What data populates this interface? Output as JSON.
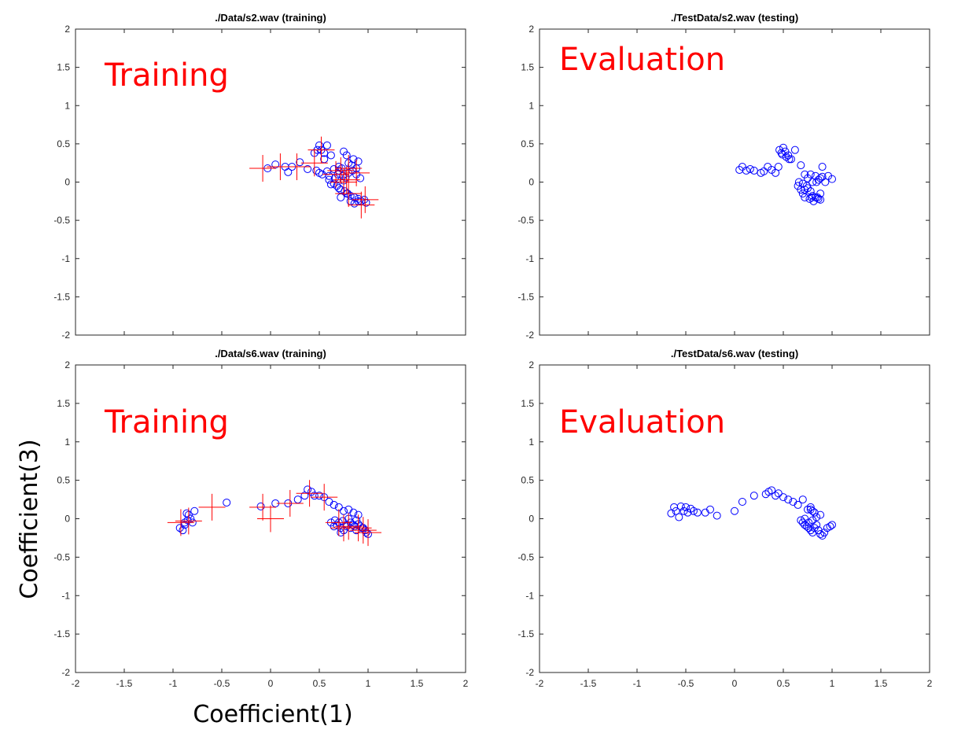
{
  "figure": {
    "xlabel": "Coefficient(1)",
    "ylabel": "Coefficient(3)",
    "colors": {
      "marker_circle": "#0000ff",
      "marker_cross": "#ff0000",
      "overlay_text": "#ff0000",
      "axis": "#262626"
    }
  },
  "chart_data": [
    {
      "type": "scatter",
      "title": "./Data/s2.wav (training)",
      "overlay": "Training",
      "xlim": [
        -2,
        2
      ],
      "ylim": [
        -2,
        2
      ],
      "xticks": [
        "-2",
        "-1.5",
        "-1",
        "-0.5",
        "0",
        "0.5",
        "1",
        "1.5",
        "2"
      ],
      "yticks": [
        "-2",
        "-1.5",
        "-1",
        "-0.5",
        "0",
        "0.5",
        "1",
        "1.5",
        "2"
      ],
      "show_xticklabels": false,
      "series": [
        {
          "marker": "circle",
          "x": [
            -0.03,
            0.05,
            0.15,
            0.18,
            0.22,
            0.3,
            0.38,
            0.45,
            0.48,
            0.5,
            0.52,
            0.55,
            0.47,
            0.5,
            0.53,
            0.58,
            0.62,
            0.65,
            0.7,
            0.73,
            0.75,
            0.78,
            0.8,
            0.83,
            0.85,
            0.88,
            0.9,
            0.6,
            0.65,
            0.68,
            0.7,
            0.72,
            0.76,
            0.79,
            0.82,
            0.86,
            0.9,
            0.93,
            0.96,
            0.98,
            0.66,
            0.69,
            0.74,
            0.77,
            0.8,
            0.84,
            0.88,
            0.92,
            0.62,
            0.6,
            0.7,
            0.75,
            0.72,
            0.78,
            0.82,
            0.86,
            0.9,
            0.55,
            0.58
          ],
          "y": [
            0.18,
            0.23,
            0.2,
            0.13,
            0.2,
            0.26,
            0.17,
            0.38,
            0.42,
            0.48,
            0.42,
            0.38,
            0.15,
            0.12,
            0.1,
            0.48,
            0.35,
            0.17,
            0.15,
            0.18,
            0.4,
            0.35,
            0.25,
            0.22,
            0.3,
            0.18,
            0.27,
            0.03,
            -0.02,
            -0.05,
            -0.08,
            -0.1,
            -0.12,
            -0.15,
            -0.18,
            -0.2,
            -0.22,
            -0.25,
            -0.23,
            -0.27,
            0.05,
            0.1,
            0.08,
            0.06,
            0.12,
            0.15,
            0.1,
            0.05,
            -0.03,
            0.08,
            0.2,
            0.02,
            -0.2,
            -0.15,
            -0.25,
            -0.28,
            -0.25,
            0.3,
            0.14
          ]
        },
        {
          "marker": "cross",
          "x": [
            -0.08,
            0.1,
            0.27,
            0.45,
            0.52,
            0.67,
            0.72,
            0.8,
            0.88,
            0.75,
            0.78,
            0.8,
            0.93,
            0.97
          ],
          "y": [
            0.18,
            0.2,
            0.2,
            0.25,
            0.42,
            0.1,
            0.15,
            0.18,
            0.12,
            0.0,
            0.03,
            -0.15,
            -0.3,
            -0.23
          ]
        }
      ]
    },
    {
      "type": "scatter",
      "title": "./TestData/s2.wav (testing)",
      "overlay": "Evaluation",
      "xlim": [
        -2,
        2
      ],
      "ylim": [
        -2,
        2
      ],
      "xticks": [
        "-2",
        "-1.5",
        "-1",
        "-0.5",
        "0",
        "0.5",
        "1",
        "1.5",
        "2"
      ],
      "yticks": [
        "-2",
        "-1.5",
        "-1",
        "-0.5",
        "0",
        "0.5",
        "1",
        "1.5",
        "2"
      ],
      "show_xticklabels": false,
      "series": [
        {
          "marker": "circle",
          "x": [
            0.05,
            0.08,
            0.12,
            0.16,
            0.2,
            0.27,
            0.3,
            0.34,
            0.38,
            0.42,
            0.45,
            0.48,
            0.5,
            0.52,
            0.55,
            0.58,
            0.62,
            0.46,
            0.49,
            0.53,
            0.56,
            0.68,
            0.72,
            0.75,
            0.78,
            0.8,
            0.83,
            0.86,
            0.88,
            0.9,
            0.93,
            0.96,
            1.0,
            0.65,
            0.68,
            0.7,
            0.72,
            0.75,
            0.78,
            0.8,
            0.83,
            0.86,
            0.88,
            0.7,
            0.74,
            0.77,
            0.81,
            0.85,
            0.88,
            0.66,
            0.72,
            0.79,
            0.84,
            0.9
          ],
          "y": [
            0.16,
            0.2,
            0.15,
            0.17,
            0.15,
            0.12,
            0.14,
            0.2,
            0.16,
            0.12,
            0.2,
            0.38,
            0.45,
            0.4,
            0.35,
            0.3,
            0.42,
            0.42,
            0.36,
            0.33,
            0.3,
            0.22,
            0.1,
            0.05,
            0.1,
            0.0,
            0.08,
            0.03,
            0.05,
            0.07,
            0.0,
            0.08,
            0.04,
            -0.05,
            -0.1,
            -0.15,
            -0.2,
            -0.08,
            -0.12,
            -0.18,
            -0.2,
            -0.22,
            -0.15,
            -0.02,
            -0.05,
            -0.22,
            -0.25,
            -0.2,
            -0.23,
            0.0,
            -0.1,
            -0.2,
            0.0,
            0.2
          ]
        }
      ]
    },
    {
      "type": "scatter",
      "title": "./Data/s6.wav (training)",
      "overlay": "Training",
      "xlim": [
        -2,
        2
      ],
      "ylim": [
        -2,
        2
      ],
      "xticks": [
        "-2",
        "-1.5",
        "-1",
        "-0.5",
        "0",
        "0.5",
        "1",
        "1.5",
        "2"
      ],
      "yticks": [
        "-2",
        "-1.5",
        "-1",
        "-0.5",
        "0",
        "0.5",
        "1",
        "1.5",
        "2"
      ],
      "show_xticklabels": true,
      "series": [
        {
          "marker": "circle",
          "x": [
            -0.93,
            -0.9,
            -0.88,
            -0.85,
            -0.82,
            -0.8,
            -0.86,
            -0.84,
            -0.88,
            -0.78,
            -0.45,
            -0.1,
            0.05,
            0.18,
            0.28,
            0.35,
            0.38,
            0.42,
            0.45,
            0.5,
            0.55,
            0.6,
            0.65,
            0.7,
            0.75,
            0.8,
            0.85,
            0.9,
            0.62,
            0.65,
            0.68,
            0.72,
            0.75,
            0.78,
            0.82,
            0.85,
            0.88,
            0.92,
            0.95,
            0.98,
            1.0,
            0.66,
            0.7,
            0.74,
            0.78,
            0.82,
            0.86,
            0.9,
            0.94,
            0.97,
            0.72,
            0.8,
            0.88
          ],
          "y": [
            -0.12,
            -0.15,
            -0.05,
            -0.02,
            0.0,
            -0.05,
            0.07,
            0.05,
            -0.08,
            0.1,
            0.21,
            0.16,
            0.2,
            0.2,
            0.25,
            0.3,
            0.38,
            0.35,
            0.3,
            0.3,
            0.28,
            0.22,
            0.18,
            0.15,
            0.1,
            0.12,
            0.08,
            0.05,
            -0.05,
            -0.1,
            -0.08,
            -0.12,
            -0.15,
            -0.1,
            -0.12,
            -0.08,
            -0.15,
            -0.1,
            -0.12,
            -0.18,
            -0.2,
            -0.02,
            -0.05,
            -0.03,
            -0.08,
            -0.05,
            -0.1,
            -0.07,
            -0.12,
            -0.15,
            -0.18,
            0.0,
            -0.02
          ]
        },
        {
          "marker": "cross",
          "x": [
            -0.92,
            -0.84,
            -0.6,
            -0.08,
            0.0,
            0.2,
            0.4,
            0.55,
            0.7,
            0.75,
            0.8,
            0.9,
            0.95,
            1.0
          ],
          "y": [
            -0.05,
            -0.03,
            0.15,
            0.15,
            0.0,
            0.2,
            0.33,
            0.28,
            -0.05,
            -0.12,
            -0.1,
            -0.12,
            -0.15,
            -0.18
          ]
        }
      ]
    },
    {
      "type": "scatter",
      "title": "./TestData/s6.wav (testing)",
      "overlay": "Evaluation",
      "xlim": [
        -2,
        2
      ],
      "ylim": [
        -2,
        2
      ],
      "xticks": [
        "-2",
        "-1.5",
        "-1",
        "-0.5",
        "0",
        "0.5",
        "1",
        "1.5",
        "2"
      ],
      "yticks": [
        "-2",
        "-1.5",
        "-1",
        "-0.5",
        "0",
        "0.5",
        "1",
        "1.5",
        "2"
      ],
      "show_xticklabels": true,
      "series": [
        {
          "marker": "circle",
          "x": [
            -0.65,
            -0.62,
            -0.6,
            -0.57,
            -0.55,
            -0.52,
            -0.5,
            -0.48,
            -0.45,
            -0.42,
            -0.38,
            -0.3,
            -0.25,
            -0.18,
            0.0,
            0.08,
            0.2,
            0.32,
            0.35,
            0.38,
            0.42,
            0.45,
            0.5,
            0.55,
            0.6,
            0.65,
            0.7,
            0.75,
            0.78,
            0.8,
            0.68,
            0.7,
            0.72,
            0.74,
            0.76,
            0.78,
            0.8,
            0.82,
            0.84,
            0.86,
            0.88,
            0.9,
            0.92,
            0.95,
            0.98,
            1.0,
            0.72,
            0.76,
            0.8,
            0.84,
            0.88,
            0.78,
            0.82
          ],
          "y": [
            0.07,
            0.15,
            0.1,
            0.02,
            0.16,
            0.1,
            0.15,
            0.08,
            0.13,
            0.1,
            0.08,
            0.08,
            0.12,
            0.04,
            0.1,
            0.22,
            0.3,
            0.32,
            0.35,
            0.37,
            0.3,
            0.33,
            0.28,
            0.25,
            0.22,
            0.18,
            0.25,
            0.12,
            0.15,
            0.1,
            -0.02,
            -0.05,
            -0.08,
            -0.1,
            -0.12,
            -0.15,
            -0.18,
            -0.12,
            -0.08,
            -0.15,
            -0.2,
            -0.22,
            -0.18,
            -0.12,
            -0.1,
            -0.08,
            0.0,
            -0.05,
            -0.02,
            0.02,
            0.05,
            0.12,
            0.08
          ]
        }
      ]
    }
  ]
}
